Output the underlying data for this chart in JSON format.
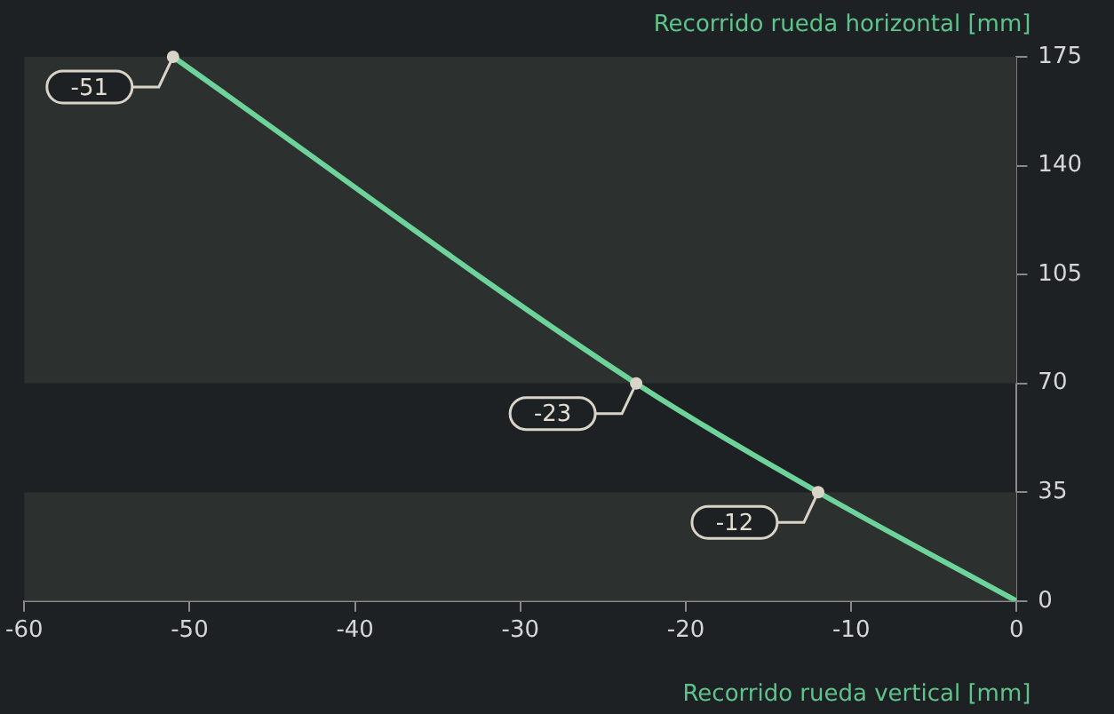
{
  "chart_data": {
    "type": "line",
    "xlabel": "Recorrido rueda vertical [mm]",
    "ylabel": "Recorrido rueda horizontal [mm]",
    "x": [
      -51,
      -23,
      -12,
      0
    ],
    "series": [
      {
        "color": "#6dd39a",
        "values": [
          175,
          70,
          35,
          0
        ]
      }
    ],
    "xlim": [
      -60,
      0
    ],
    "xticks": [
      -60,
      -50,
      -40,
      -30,
      -20,
      -10,
      0
    ],
    "ylim": [
      0,
      175
    ],
    "yticks": [
      0,
      35,
      70,
      105,
      140,
      175
    ],
    "bands": [
      {
        "axis": "y",
        "from": 70,
        "to": 175,
        "color": "#2c302e"
      },
      {
        "axis": "y",
        "from": 0,
        "to": 35,
        "color": "#2c302e"
      }
    ],
    "annotations": [
      {
        "text": "-51",
        "x": -51,
        "y": 175
      },
      {
        "text": "-23",
        "x": -23,
        "y": 70
      },
      {
        "text": "-12",
        "x": -12,
        "y": 35
      }
    ],
    "legend": false
  }
}
